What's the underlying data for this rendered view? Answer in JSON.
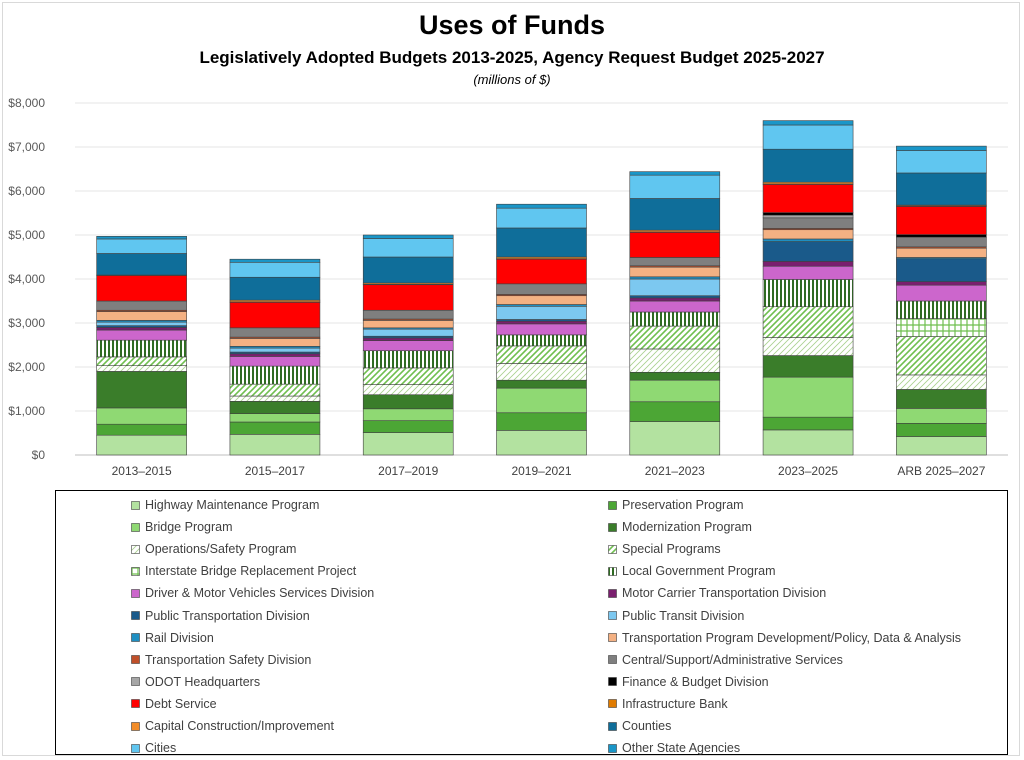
{
  "chart_data": {
    "type": "bar",
    "stacked": true,
    "title": "Uses of Funds",
    "subtitle": "Legislatively Adopted Budgets 2013-2025, Agency Request Budget 2025-2027",
    "note": "(millions of $)",
    "ylim": [
      0,
      8000
    ],
    "yticks": [
      "$0",
      "$1,000",
      "$2,000",
      "$3,000",
      "$4,000",
      "$5,000",
      "$6,000",
      "$7,000",
      "$8,000"
    ],
    "grid": true,
    "legend_position": "bottom",
    "categories": [
      "2013–2015",
      "2015–2017",
      "2017–2019",
      "2019–2021",
      "2021–2023",
      "2023–2025",
      "ARB 2025–2027"
    ],
    "series": [
      {
        "name": "Highway Maintenance Program",
        "color": "#b3e2a0",
        "pattern": "solid",
        "values": [
          450,
          470,
          510,
          560,
          760,
          570,
          420
        ]
      },
      {
        "name": "Preservation Program",
        "color": "#4ca635",
        "pattern": "solid",
        "values": [
          250,
          280,
          270,
          400,
          450,
          290,
          300
        ]
      },
      {
        "name": "Bridge Program",
        "color": "#8fd973",
        "pattern": "solid",
        "values": [
          370,
          190,
          270,
          560,
          490,
          910,
          340
        ]
      },
      {
        "name": "Modernization Program",
        "color": "#3a7d2a",
        "pattern": "solid",
        "values": [
          830,
          280,
          320,
          180,
          180,
          490,
          430
        ]
      },
      {
        "name": "Operations/Safety Program",
        "color": "#e3f3da",
        "pattern": "hatch-light",
        "values": [
          130,
          120,
          230,
          380,
          530,
          410,
          330
        ]
      },
      {
        "name": "Special Programs",
        "color": "#6fbf4f",
        "pattern": "diagonal",
        "values": [
          200,
          270,
          380,
          400,
          520,
          700,
          870
        ]
      },
      {
        "name": "Interstate Bridge Replacement Project",
        "color": "#6fbf4f",
        "pattern": "grid",
        "values": [
          0,
          0,
          0,
          0,
          0,
          0,
          410
        ]
      },
      {
        "name": "Local Government Program",
        "color": "#2f6b22",
        "pattern": "vertical",
        "values": [
          380,
          410,
          390,
          250,
          320,
          620,
          400
        ]
      },
      {
        "name": "Driver & Motor Vehicles Services Division",
        "color": "#cc66cc",
        "pattern": "solid",
        "values": [
          230,
          220,
          230,
          250,
          250,
          300,
          360
        ]
      },
      {
        "name": "Motor Carrier Transportation Division",
        "color": "#7a1f6e",
        "pattern": "solid",
        "values": [
          60,
          60,
          60,
          60,
          70,
          110,
          80
        ]
      },
      {
        "name": "Public Transportation Division",
        "color": "#1a5a8a",
        "pattern": "solid",
        "values": [
          40,
          40,
          40,
          40,
          50,
          450,
          520
        ]
      },
      {
        "name": "Public Transit Division",
        "color": "#7cc8f0",
        "pattern": "solid",
        "values": [
          80,
          90,
          160,
          300,
          380,
          0,
          0
        ]
      },
      {
        "name": "Rail Division",
        "color": "#1f8fc2",
        "pattern": "solid",
        "values": [
          40,
          40,
          30,
          40,
          50,
          60,
          30
        ]
      },
      {
        "name": "Transportation Program Development/Policy, Data & Analysis",
        "color": "#f4b183",
        "pattern": "solid",
        "values": [
          200,
          180,
          170,
          200,
          220,
          210,
          210
        ]
      },
      {
        "name": "Transportation Safety Division",
        "color": "#c0502a",
        "pattern": "solid",
        "values": [
          30,
          30,
          30,
          30,
          30,
          30,
          30
        ]
      },
      {
        "name": "Central/Support/Administrative Services",
        "color": "#7f7f7f",
        "pattern": "solid",
        "values": [
          210,
          210,
          200,
          240,
          190,
          240,
          220
        ]
      },
      {
        "name": "ODOT Headquarters",
        "color": "#a6a6a6",
        "pattern": "solid",
        "values": [
          0,
          0,
          0,
          0,
          0,
          60,
          0
        ]
      },
      {
        "name": "Finance & Budget Division",
        "color": "#000000",
        "pattern": "solid",
        "values": [
          0,
          0,
          0,
          0,
          0,
          60,
          60
        ]
      },
      {
        "name": "Debt Service",
        "color": "#ff0000",
        "pattern": "solid",
        "values": [
          580,
          580,
          580,
          560,
          570,
          640,
          640
        ]
      },
      {
        "name": "Infrastructure Bank",
        "color": "#e07b00",
        "pattern": "solid",
        "values": [
          10,
          10,
          10,
          10,
          10,
          10,
          10
        ]
      },
      {
        "name": "Capital Construction/Improvement",
        "color": "#f28c28",
        "pattern": "solid",
        "values": [
          0,
          40,
          30,
          40,
          40,
          40,
          20
        ]
      },
      {
        "name": "Counties",
        "color": "#0f6e9a",
        "pattern": "solid",
        "values": [
          490,
          520,
          590,
          660,
          720,
          750,
          730
        ]
      },
      {
        "name": "Cities",
        "color": "#60c6f0",
        "pattern": "solid",
        "values": [
          330,
          340,
          420,
          450,
          530,
          550,
          510
        ]
      },
      {
        "name": "Other State Agencies",
        "color": "#1a96c8",
        "pattern": "solid",
        "values": [
          60,
          70,
          80,
          90,
          80,
          100,
          100
        ]
      }
    ]
  }
}
